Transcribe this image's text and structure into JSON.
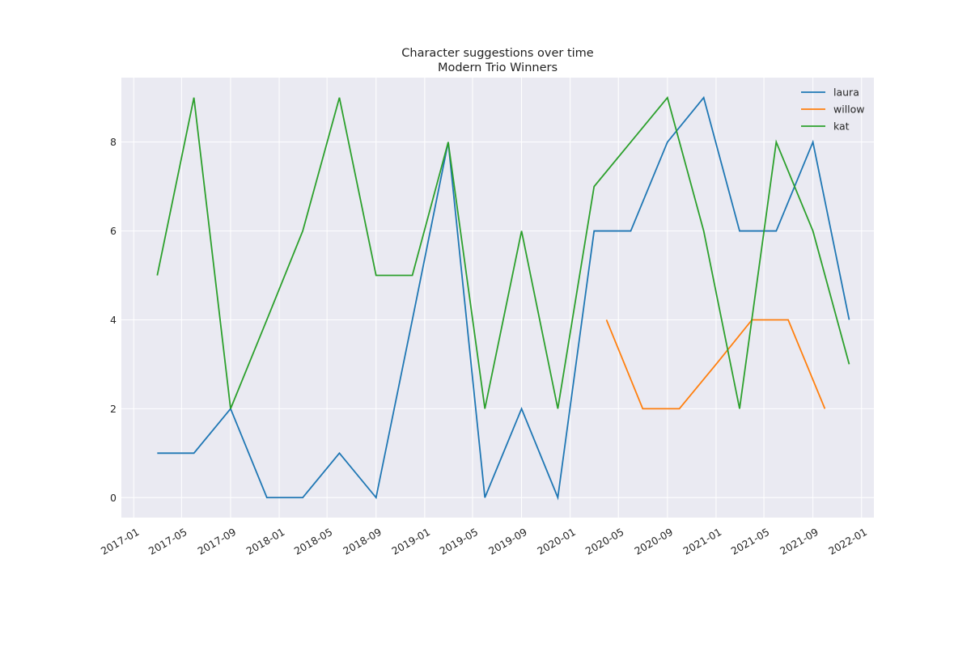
{
  "chart_data": {
    "type": "line",
    "title": "Character suggestions over time",
    "subtitle": "Modern Trio Winners",
    "xlabel": "",
    "ylabel": "",
    "x_axis_type": "date",
    "xlim": [
      "2016-12-01",
      "2022-02-01"
    ],
    "ylim": [
      -0.45,
      9.45
    ],
    "x_ticks": [
      "2017-01",
      "2017-05",
      "2017-09",
      "2018-01",
      "2018-05",
      "2018-09",
      "2019-01",
      "2019-05",
      "2019-09",
      "2020-01",
      "2020-05",
      "2020-09",
      "2021-01",
      "2021-05",
      "2021-09",
      "2022-01"
    ],
    "y_ticks": [
      0,
      2,
      4,
      6,
      8
    ],
    "grid": true,
    "background": "#EAEAF2",
    "legend_position": "top-right",
    "series": [
      {
        "name": "laura",
        "color": "#1f77b4",
        "points": [
          [
            "2017-03-01",
            1
          ],
          [
            "2017-06-01",
            1
          ],
          [
            "2017-09-01",
            2
          ],
          [
            "2017-12-01",
            0
          ],
          [
            "2018-03-01",
            0
          ],
          [
            "2018-06-01",
            1
          ],
          [
            "2018-09-01",
            0
          ],
          [
            "2018-12-01",
            4
          ],
          [
            "2019-03-01",
            8
          ],
          [
            "2019-06-01",
            0
          ],
          [
            "2019-09-01",
            2
          ],
          [
            "2019-12-01",
            0
          ],
          [
            "2020-03-01",
            6
          ],
          [
            "2020-06-01",
            6
          ],
          [
            "2020-09-01",
            8
          ],
          [
            "2020-12-01",
            9
          ],
          [
            "2021-03-01",
            6
          ],
          [
            "2021-06-01",
            6
          ],
          [
            "2021-09-01",
            8
          ],
          [
            "2021-12-01",
            4
          ]
        ]
      },
      {
        "name": "willow",
        "color": "#ff7f0e",
        "points": [
          [
            "2020-04-01",
            4
          ],
          [
            "2020-07-01",
            2
          ],
          [
            "2020-10-01",
            2
          ],
          [
            "2021-01-01",
            3
          ],
          [
            "2021-04-01",
            4
          ],
          [
            "2021-07-01",
            4
          ],
          [
            "2021-10-01",
            2
          ]
        ]
      },
      {
        "name": "kat",
        "color": "#2ca02c",
        "points": [
          [
            "2017-03-01",
            5
          ],
          [
            "2017-06-01",
            9
          ],
          [
            "2017-09-01",
            2
          ],
          [
            "2017-12-01",
            4
          ],
          [
            "2018-03-01",
            6
          ],
          [
            "2018-06-01",
            9
          ],
          [
            "2018-09-01",
            5
          ],
          [
            "2018-12-01",
            5
          ],
          [
            "2019-03-01",
            8
          ],
          [
            "2019-06-01",
            2
          ],
          [
            "2019-09-01",
            6
          ],
          [
            "2019-12-01",
            2
          ],
          [
            "2020-03-01",
            7
          ],
          [
            "2020-06-01",
            8
          ],
          [
            "2020-09-01",
            9
          ],
          [
            "2020-12-01",
            6
          ],
          [
            "2021-03-01",
            2
          ],
          [
            "2021-06-01",
            8
          ],
          [
            "2021-09-01",
            6
          ],
          [
            "2021-12-01",
            3
          ]
        ]
      }
    ]
  }
}
